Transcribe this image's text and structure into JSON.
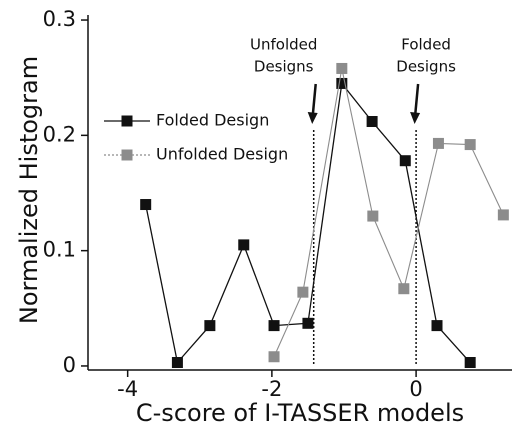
{
  "chart_data": {
    "type": "line",
    "x_label": "C-score of I-TASSER models",
    "y_label": "Normalized Histogram",
    "xlim": [
      -4.55,
      1.33
    ],
    "ylim": [
      -0.0035,
      0.3035
    ],
    "xticks": [
      -4,
      -2,
      0
    ],
    "yticks": [
      0,
      0.1,
      0.2,
      0.3
    ],
    "legend": "upper left",
    "series": [
      {
        "name": "Folded Design",
        "color": "#111111",
        "x": [
          -3.75,
          -3.31,
          -2.86,
          -2.39,
          -1.97,
          -1.5,
          -1.03,
          -0.61,
          -0.15,
          0.29,
          0.75
        ],
        "values": [
          0.14,
          0.003,
          0.035,
          0.105,
          0.035,
          0.037,
          0.245,
          0.212,
          0.178,
          0.035,
          0.003
        ]
      },
      {
        "name": "Unfolded Design",
        "color": "#8c8c8c",
        "x": [
          -1.97,
          -1.57,
          -1.03,
          -0.6,
          -0.17,
          0.31,
          0.75,
          1.21
        ],
        "values": [
          0.008,
          0.064,
          0.258,
          0.13,
          0.067,
          0.193,
          0.192,
          0.131
        ]
      }
    ],
    "vlines": [
      -1.42,
      0
    ],
    "annotations": [
      {
        "lines": [
          "Unfolded",
          "Designs"
        ]
      },
      {
        "lines": [
          "Folded",
          "Designs"
        ]
      }
    ]
  }
}
